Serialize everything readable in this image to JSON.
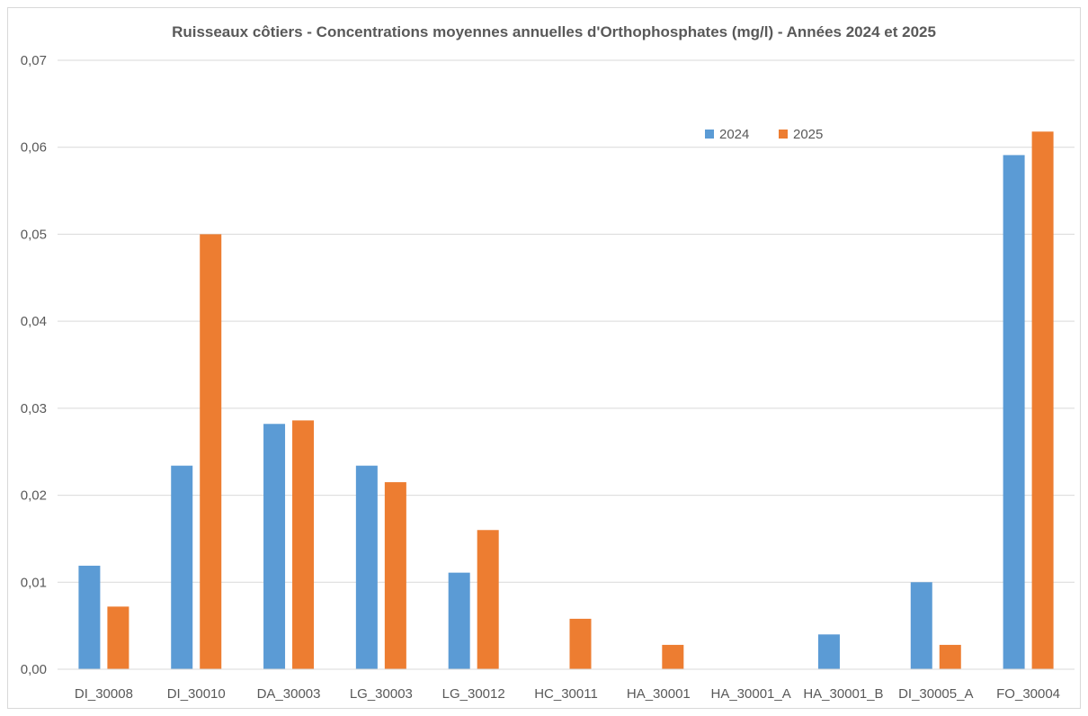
{
  "chart_data": {
    "type": "bar",
    "title": "Ruisseaux côtiers - Concentrations moyennes annuelles d'Orthophosphates (mg/l) - Années 2024 et 2025",
    "xlabel": "",
    "ylabel": "",
    "ylim": [
      0,
      0.07
    ],
    "yticks": [
      "0,00",
      "0,01",
      "0,02",
      "0,03",
      "0,04",
      "0,05",
      "0,06",
      "0,07"
    ],
    "grid": true,
    "legend_position": "top-right",
    "categories": [
      "DI_30008",
      "DI_30010",
      "DA_30003",
      "LG_30003",
      "LG_30012",
      "HC_30011",
      "HA_30001",
      "HA_30001_A",
      "HA_30001_B",
      "DI_30005_A",
      "FO_30004"
    ],
    "series": [
      {
        "name": "2024",
        "color": "#5b9bd5",
        "values": [
          0.0119,
          0.0234,
          0.0282,
          0.0234,
          0.0111,
          0,
          0,
          0,
          0.004,
          0.01,
          0.0591
        ]
      },
      {
        "name": "2025",
        "color": "#ed7d31",
        "values": [
          0.0072,
          0.05,
          0.0286,
          0.0215,
          0.016,
          0.0058,
          0.0028,
          0,
          0,
          0.0028,
          0.0618
        ]
      }
    ]
  }
}
